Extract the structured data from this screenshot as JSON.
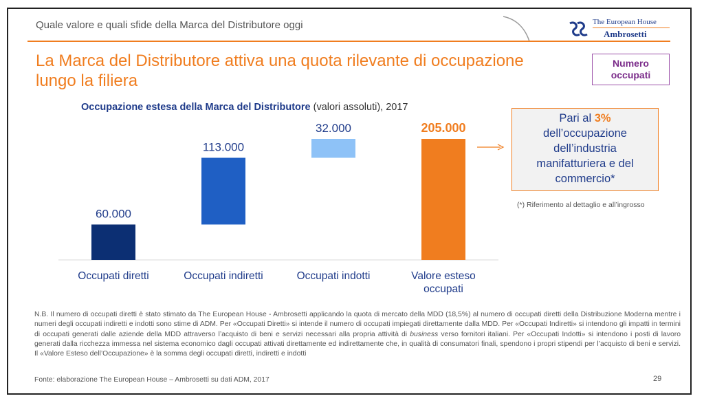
{
  "header": {
    "title": "Quale valore e quali sfide della Marca del Distributore oggi",
    "logo_line1": "The European House",
    "logo_line2": "Ambrosetti"
  },
  "slide": {
    "title_line1": "La Marca del Distributore attiva una quota rilevante di occupazione",
    "title_line2": "lungo la filiera",
    "badge_line1": "Numero",
    "badge_line2": "occupati",
    "chart_title_bold": "Occupazione estesa della Marca del Distributore",
    "chart_title_rest": "(valori assoluti), 2017",
    "callout": {
      "pre": "Pari al",
      "highlight": "3%",
      "line2": "dell’occupazione",
      "line3": "dell’industria",
      "line4": "manifatturiera e del",
      "line5": "commercio*"
    },
    "footnote": "(*) Riferimento al dettaglio e all’ingrosso",
    "nb_1": "N.B. Il numero di occupati diretti è stato stimato da The European House - Ambrosetti applicando la quota di mercato della MDD (18,5%) al numero di occupati diretti della Distribuzione Moderna mentre i numeri degli occupati indiretti e indotti sono stime di ADM. Per «Occupati Diretti» si intende il numero di occupati impiegati direttamente dalla MDD. Per «Occupati Indiretti» si intendono gli impatti in termini di occupati generati dalle aziende della MDD attraverso l’acquisto di beni e servizi necessari alla propria attività di",
    "nb_italic": "business",
    "nb_2": "verso fornitori italiani. Per «Occupati Indotti» si intendono i posti di lavoro generati dalla ricchezza immessa nel sistema economico dagli occupati attivati direttamente ed indirettamente che, in qualità di consumatori finali, spendono i propri stipendi per l’acquisto di beni e servizi. Il «Valore Esteso dell’Occupazione» è la somma degli occupati diretti, indiretti e indotti",
    "source": "Fonte: elaborazione The European House – Ambrosetti su dati ADM, 2017",
    "page_number": "29"
  },
  "colors": {
    "accent": "#f07d1f",
    "navy": "#1f3b8a",
    "bar_direct": "#0c2f73",
    "bar_indirect": "#1f5fc4",
    "bar_induced": "#8ec2f7",
    "bar_total": "#f07d1f"
  },
  "chart_data": {
    "type": "bar",
    "subtype": "waterfall",
    "title": "Occupazione estesa della Marca del Distributore (valori assoluti), 2017",
    "categories": [
      "Occupati diretti",
      "Occupati indiretti",
      "Occupati indotti",
      "Valore esteso occupati"
    ],
    "values": [
      60000,
      113000,
      32000,
      205000
    ],
    "labels": [
      "60.000",
      "113.000",
      "32.000",
      "205.000"
    ],
    "bar_colors": [
      "#0c2f73",
      "#1f5fc4",
      "#8ec2f7",
      "#f07d1f"
    ],
    "label_colors": [
      "#1f3b8a",
      "#1f3b8a",
      "#1f3b8a",
      "#f07d1f"
    ],
    "is_total": [
      false,
      false,
      false,
      true
    ],
    "ylim": [
      0,
      205000
    ],
    "grid": false,
    "legend": "none"
  }
}
